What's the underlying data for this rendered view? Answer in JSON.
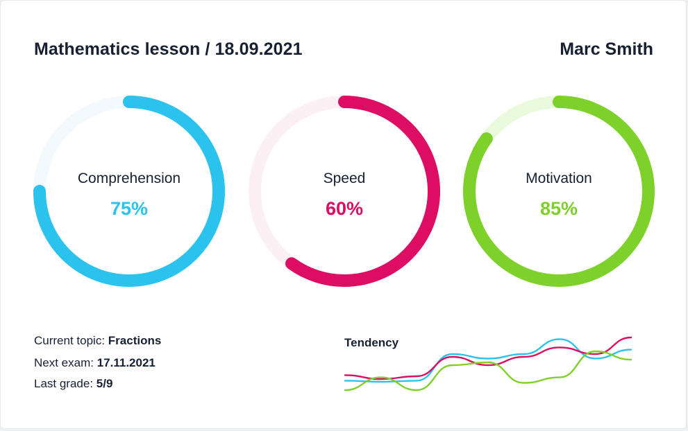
{
  "header": {
    "title": "Mathematics lesson / 18.09.2021",
    "student": "Marc Smith"
  },
  "gauges": [
    {
      "label": "Comprehension",
      "value_text": "75%",
      "percent": 75,
      "color": "#2bc3ee",
      "track": "#f2fafe"
    },
    {
      "label": "Speed",
      "value_text": "60%",
      "percent": 60,
      "color": "#dc0d62",
      "track": "#fdf0f4"
    },
    {
      "label": "Motivation",
      "value_text": "85%",
      "percent": 85,
      "color": "#7dd12a",
      "track": "#eafadc"
    }
  ],
  "info": {
    "topic_label": "Current topic:",
    "topic_value": "Fractions",
    "exam_label": "Next exam:",
    "exam_value": "17.11.2021",
    "grade_label": "Last grade:",
    "grade_value": "5/9"
  },
  "tendency": {
    "label": "Tendency",
    "series": [
      {
        "color": "#2bc3ee",
        "values": [
          0.22,
          0.2,
          0.22,
          0.7,
          0.62,
          0.7,
          0.97,
          0.62,
          0.78
        ]
      },
      {
        "color": "#dc0d62",
        "values": [
          0.32,
          0.25,
          0.3,
          0.65,
          0.5,
          0.65,
          0.82,
          0.7,
          1.0
        ]
      },
      {
        "color": "#7dd12a",
        "values": [
          0.05,
          0.28,
          0.05,
          0.5,
          0.55,
          0.18,
          0.28,
          0.75,
          0.6
        ]
      }
    ]
  }
}
